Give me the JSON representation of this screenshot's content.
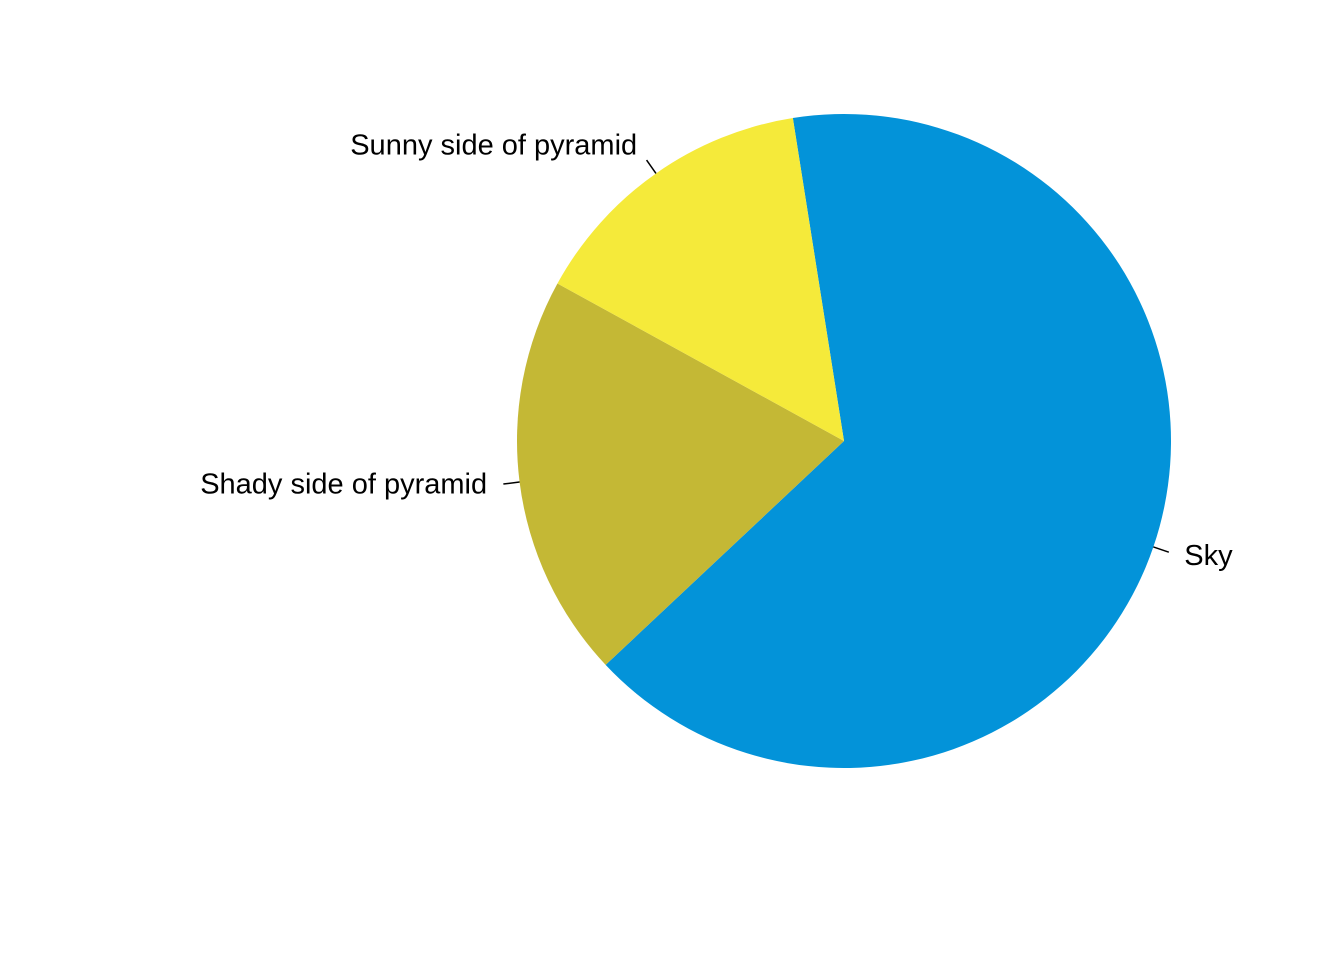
{
  "chart_data": {
    "type": "pie",
    "start_angle_deg": 99,
    "direction": "clockwise",
    "slices": [
      {
        "label": "Sky",
        "value": 0.655,
        "color": "#0393D9"
      },
      {
        "label": "Shady side of pyramid",
        "value": 0.2,
        "color": "#C4B835"
      },
      {
        "label": "Sunny side of pyramid",
        "value": 0.145,
        "color": "#F5EA3A"
      }
    ]
  }
}
